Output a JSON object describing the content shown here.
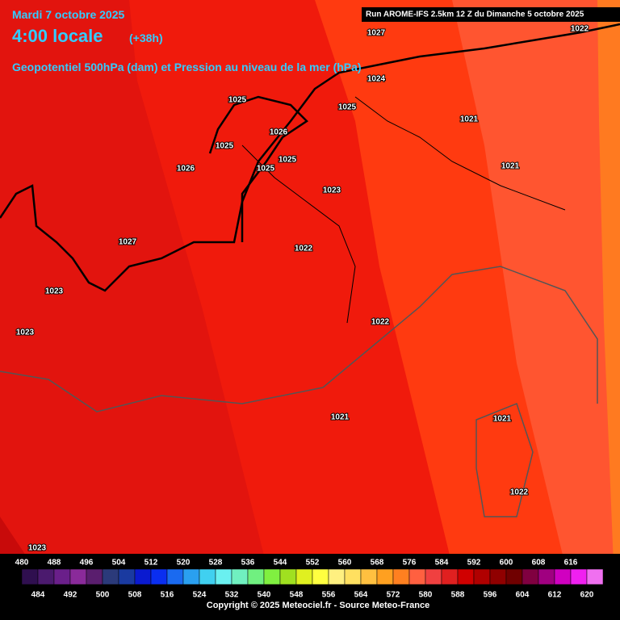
{
  "header": {
    "date": "Mardi 7 octobre 2025",
    "time": "4:00 locale",
    "lead": "(+38h)",
    "field": "Geopotentiel 500hPa (dam) et Pression au niveau de la mer (hPa)",
    "run": "Run AROME-IFS 2.5km 12 Z du Dimanche 5 octobre 2025"
  },
  "pressure_labels": [
    1027,
    1022,
    1024,
    1025,
    1025,
    1021,
    1026,
    1025,
    1025,
    1025,
    1026,
    1021,
    1023,
    1027,
    1022,
    1023,
    1023,
    1022,
    1021,
    1021,
    1022,
    1023
  ],
  "colorbar": {
    "top_labels": [
      480,
      488,
      496,
      504,
      512,
      520,
      528,
      536,
      544,
      552,
      560,
      568,
      576,
      584,
      592,
      600,
      608,
      616
    ],
    "bottom_labels": [
      484,
      492,
      500,
      508,
      516,
      524,
      532,
      540,
      548,
      556,
      564,
      572,
      580,
      588,
      596,
      604,
      612,
      620
    ],
    "colors": [
      "#2f0f4f",
      "#4b1a6e",
      "#6a1f8a",
      "#8a2a9a",
      "#5a1e6e",
      "#2b3a7a",
      "#1a3aa0",
      "#0a1ad0",
      "#0a2ef0",
      "#1a6af0",
      "#2aa0f0",
      "#40d0f0",
      "#6af0f0",
      "#70f0c0",
      "#70f080",
      "#80f040",
      "#a0e020",
      "#e0f020",
      "#ffff40",
      "#fff080",
      "#ffe060",
      "#ffc040",
      "#ffa020",
      "#ff8020",
      "#ff6040",
      "#f04040",
      "#e02020",
      "#d00000",
      "#b00000",
      "#900000",
      "#700000",
      "#800040",
      "#a00080",
      "#d000c0",
      "#f020f0",
      "#f070f0"
    ]
  },
  "footer": {
    "copyright": "Copyright © 2025 Meteociel.fr - Source Meteo-France"
  }
}
